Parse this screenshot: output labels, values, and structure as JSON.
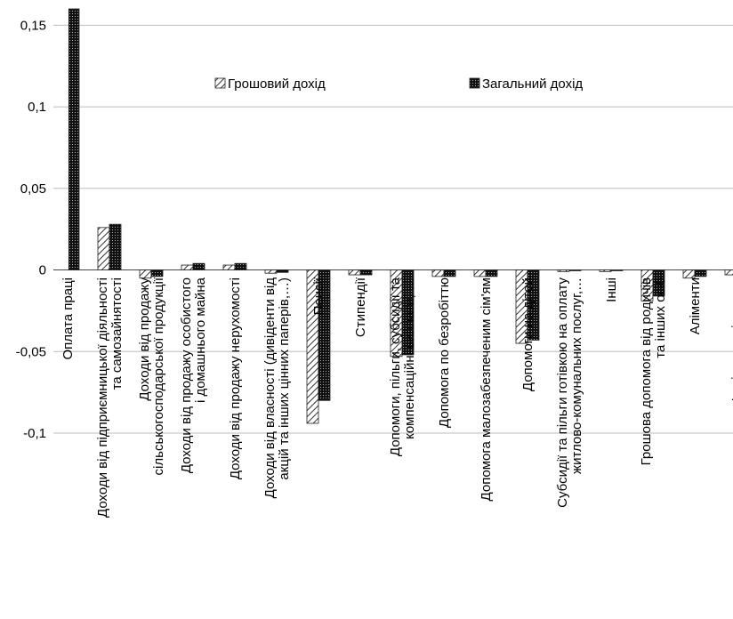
{
  "chart_data": {
    "type": "bar",
    "categories": [
      "Оплата праці",
      "Доходи від підприємницької діяльності\nта самозайнятості",
      "Доходи від продажу\nсільськогосподарської продукції",
      "Доходи від продажу особистого\nі домашнього майна",
      "Доходи від продажу нерухомості",
      "Доходи від власності (дивіденти від\nакцій та інших цінних паперів,…)",
      "Пенсії",
      "Стипендії",
      "Допомоги, пільги, субсидії та\nкомпенсаційні виплати, …",
      "Допомога по безробіттю",
      "Допомога малозабезпеченим сім'ям",
      "Допомоги на дітей",
      "Субсидії та пільги готівкою на оплату\nжитлово-комунальних послуг,…",
      "Інші",
      "Грошова допомога від родичів\nта інших осіб",
      "Аліменти",
      "Інші грошові доходи"
    ],
    "series": [
      {
        "name": "Грошовий дохід",
        "color": "hatch",
        "values": [
          null,
          0.026,
          -0.005,
          0.003,
          0.003,
          -0.002,
          -0.094,
          -0.003,
          -0.053,
          -0.004,
          -0.004,
          -0.045,
          -0.001,
          -0.001,
          -0.019,
          -0.005,
          -0.003
        ]
      },
      {
        "name": "Загальний дохід",
        "color": "dots",
        "values": [
          0.16,
          0.028,
          -0.004,
          0.004,
          0.004,
          -0.0015,
          -0.08,
          -0.003,
          -0.052,
          -0.004,
          -0.004,
          -0.043,
          -0.0005,
          -0.0005,
          -0.016,
          -0.004,
          null
        ]
      }
    ],
    "ylim": [
      -0.1,
      0.16
    ],
    "yticks": [
      {
        "value": -0.1,
        "label": "-0,1"
      },
      {
        "value": -0.05,
        "label": "-0,05"
      },
      0,
      {
        "value": 0.05,
        "label": "0,05"
      },
      {
        "value": 0.1,
        "label": "0,1"
      },
      {
        "value": 0.15,
        "label": "0,15"
      }
    ],
    "grid": true,
    "legend": "top"
  }
}
